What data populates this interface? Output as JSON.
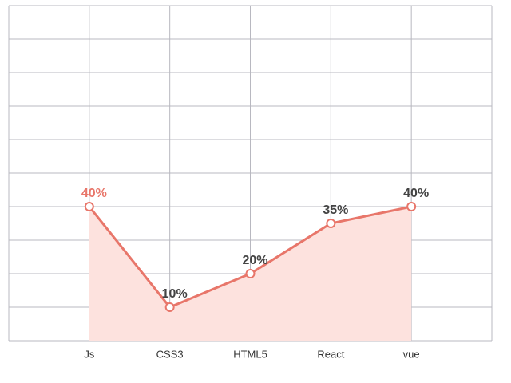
{
  "chart_data": {
    "type": "line",
    "categories": [
      "Js",
      "CSS3",
      "HTML5",
      "React",
      "vue"
    ],
    "values": [
      40,
      10,
      20,
      35,
      40
    ],
    "value_labels": [
      "40%",
      "10%",
      "20%",
      "35%",
      "40%"
    ],
    "color": "#e8766a",
    "area_color": "#fde2de",
    "highlight_color": "#e8766a",
    "label_color": "#444444",
    "ylim": [
      0,
      100
    ],
    "yticks": [
      0,
      10,
      20,
      30,
      40,
      50,
      60,
      70,
      80,
      90,
      100
    ],
    "grid": true
  }
}
